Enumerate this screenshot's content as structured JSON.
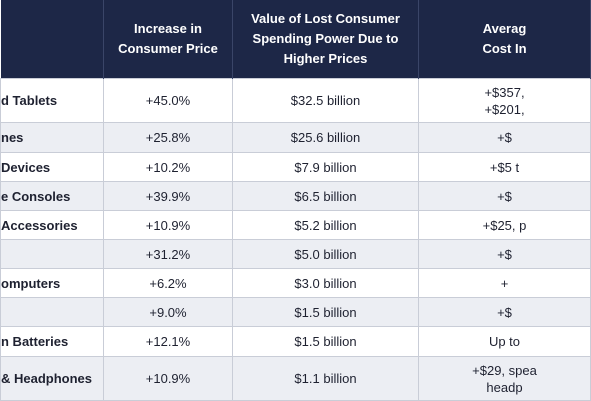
{
  "table": {
    "header": [
      "Increase in\nConsumer Price",
      "Value of Lost Consumer\nSpending Power Due to\nHigher Prices",
      "Averag\nCost In"
    ],
    "rows": [
      [
        "d Tablets",
        "+45.0%",
        "$32.5 billion",
        "+$357,\n+$201,"
      ],
      [
        "nes",
        "+25.8%",
        "$25.6 billion",
        "+$"
      ],
      [
        "Devices",
        "+10.2%",
        "$7.9 billion",
        "+$5 t"
      ],
      [
        "e Consoles",
        "+39.9%",
        "$6.5 billion",
        "+$"
      ],
      [
        "Accessories",
        "+10.9%",
        "$5.2 billion",
        "+$25, p"
      ],
      [
        null,
        "+31.2%",
        "$5.0 billion",
        "+$"
      ],
      [
        "omputers",
        "+6.2%",
        "$3.0 billion",
        "+"
      ],
      [
        null,
        "+9.0%",
        "$1.5 billion",
        "+$"
      ],
      [
        "n Batteries",
        "+12.1%",
        "$1.5 billion",
        "Up to"
      ],
      [
        "& Headphones",
        "+10.9%",
        "$1.1 billion",
        "+$29, spea\nheadp"
      ]
    ]
  }
}
